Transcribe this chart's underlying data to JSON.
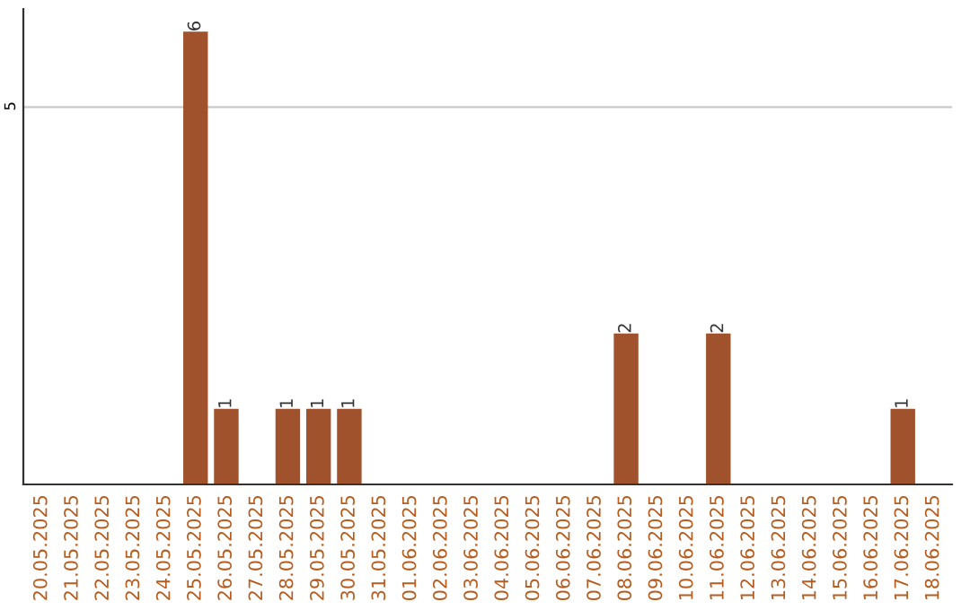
{
  "chart_data": {
    "type": "bar",
    "categories": [
      "20.05.2025",
      "21.05.2025",
      "22.05.2025",
      "23.05.2025",
      "24.05.2025",
      "25.05.2025",
      "26.05.2025",
      "27.05.2025",
      "28.05.2025",
      "29.05.2025",
      "30.05.2025",
      "31.05.2025",
      "01.06.2025",
      "02.06.2025",
      "03.06.2025",
      "04.06.2025",
      "05.06.2025",
      "06.06.2025",
      "07.06.2025",
      "08.06.2025",
      "09.06.2025",
      "10.06.2025",
      "11.06.2025",
      "12.06.2025",
      "13.06.2025",
      "14.06.2025",
      "15.06.2025",
      "16.06.2025",
      "17.06.2025",
      "18.06.2025"
    ],
    "values": [
      0,
      0,
      0,
      0,
      0,
      6,
      1,
      0,
      1,
      1,
      1,
      0,
      0,
      0,
      0,
      0,
      0,
      0,
      0,
      2,
      0,
      0,
      2,
      0,
      0,
      0,
      0,
      0,
      1,
      0
    ],
    "value_labels": [
      null,
      null,
      null,
      null,
      null,
      "6",
      "1",
      null,
      "1",
      "1",
      "1",
      null,
      null,
      null,
      null,
      null,
      null,
      null,
      null,
      "2",
      null,
      null,
      "2",
      null,
      null,
      null,
      null,
      null,
      "1",
      null
    ],
    "color": "#a0522d",
    "ylim": [
      0,
      6.3
    ],
    "yticks": [
      5
    ],
    "grid": "y"
  }
}
